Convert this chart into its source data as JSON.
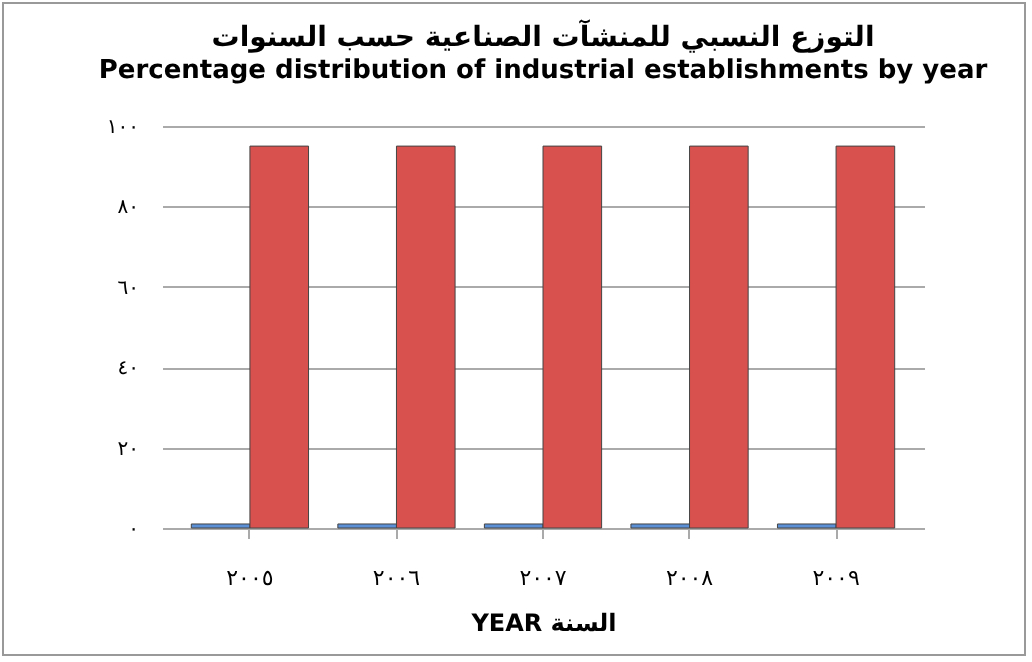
{
  "chart_data": {
    "type": "bar",
    "title": "التوزع النسبي للمنشآت الصناعية حسب السنوات",
    "subtitle": "Percentage distribution of industrial establishments by year",
    "xlabel": "YEAR السنة",
    "categories": [
      "٢٠٠٥",
      "٢٠٠٦",
      "٢٠٠٧",
      "٢٠٠٨",
      "٢٠٠٩"
    ],
    "series": [
      {
        "color": "#5b8fd6",
        "values": [
          1,
          1,
          1,
          1,
          1
        ]
      },
      {
        "color": "#d9514e",
        "values": [
          95,
          95,
          95,
          95,
          95
        ]
      }
    ],
    "ylim": [
      0,
      100
    ],
    "yticks": [
      {
        "value": 0,
        "label": "٠"
      },
      {
        "value": 20,
        "label": "٢٠"
      },
      {
        "value": 40,
        "label": "٤٠"
      },
      {
        "value": 60,
        "label": "٦٠"
      },
      {
        "value": 80,
        "label": "٨٠"
      },
      {
        "value": 100,
        "label": "١٠٠"
      }
    ],
    "grid": "y",
    "legend": false
  }
}
